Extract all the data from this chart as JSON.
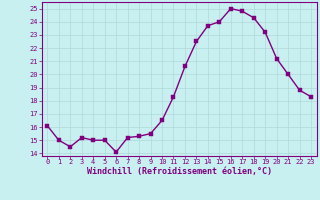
{
  "x": [
    0,
    1,
    2,
    3,
    4,
    5,
    6,
    7,
    8,
    9,
    10,
    11,
    12,
    13,
    14,
    15,
    16,
    17,
    18,
    19,
    20,
    21,
    22,
    23
  ],
  "y": [
    16.1,
    15.0,
    14.5,
    15.2,
    15.0,
    15.0,
    14.1,
    15.2,
    15.3,
    15.5,
    16.5,
    18.3,
    20.6,
    22.5,
    23.7,
    24.0,
    25.0,
    24.8,
    24.3,
    23.2,
    21.2,
    20.0,
    18.8,
    18.3
  ],
  "line_color": "#800080",
  "marker_color": "#800080",
  "bg_color": "#c8f0f0",
  "grid_color": "#b0d8d8",
  "xlabel": "Windchill (Refroidissement éolien,°C)",
  "ylim": [
    13.8,
    25.5
  ],
  "xlim": [
    -0.5,
    23.5
  ],
  "yticks": [
    14,
    15,
    16,
    17,
    18,
    19,
    20,
    21,
    22,
    23,
    24,
    25
  ],
  "xticks": [
    0,
    1,
    2,
    3,
    4,
    5,
    6,
    7,
    8,
    9,
    10,
    11,
    12,
    13,
    14,
    15,
    16,
    17,
    18,
    19,
    20,
    21,
    22,
    23
  ],
  "tick_fontsize": 5.0,
  "xlabel_fontsize": 6.0,
  "line_width": 1.0,
  "marker_size": 2.5
}
